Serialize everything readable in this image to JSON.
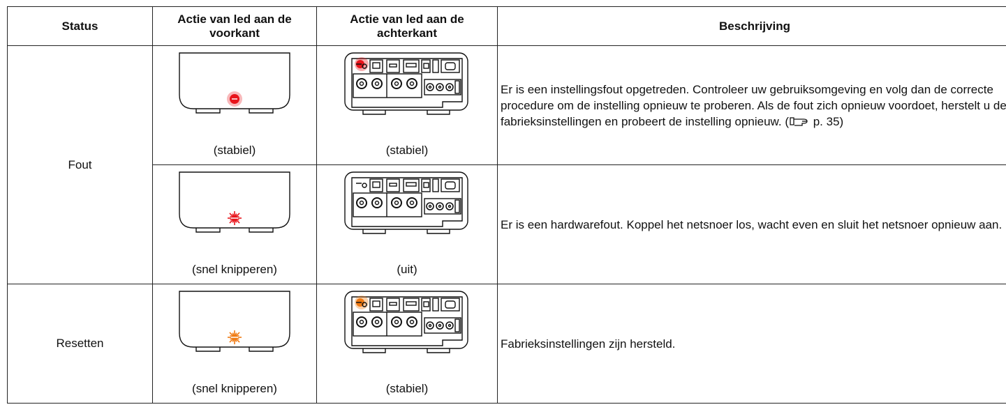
{
  "table": {
    "header": [
      "Status",
      "Actie van led aan de voorkant",
      "Actie van led aan de achterkant",
      "Beschrijving"
    ],
    "rows": [
      {
        "status": "Fout",
        "front": "(stabiel)",
        "back": "(stabiel)",
        "description": "Er is een instellingsfout opgetreden. Controleer uw gebruiksomgeving en volg dan de correcte procedure om de instelling opnieuw te proberen. Als de fout zich opnieuw voordoet, herstelt u de fabrieksinstellingen en probeert de instelling opnieuw.  (",
        "reference": "p. 35)"
      },
      {
        "front": "(snel knipperen)",
        "back": "(uit)",
        "description": "Er is een hardwarefout. Koppel het netsnoer los, wacht even en sluit het netsnoer opnieuw aan."
      },
      {
        "status": "Resetten",
        "front": "(snel knipperen)",
        "back": "(stabiel)",
        "description": "Fabrieksinstellingen zijn hersteld."
      }
    ]
  }
}
